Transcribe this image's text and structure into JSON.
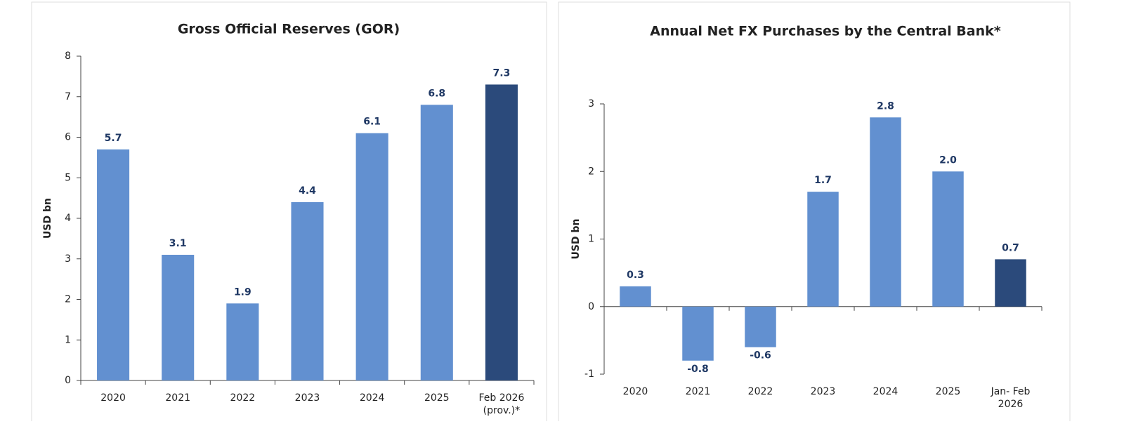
{
  "chart_data": [
    {
      "type": "bar",
      "title": "Gross Official Reserves (GOR)",
      "y_label": "USD bn",
      "categories": [
        "2020",
        "2021",
        "2022",
        "2023",
        "2024",
        "2025",
        [
          "Feb 2026",
          "(prov.)*"
        ]
      ],
      "values": [
        5.7,
        3.1,
        1.9,
        4.4,
        6.1,
        6.8,
        7.3
      ],
      "colors": [
        "#6290d0",
        "#6290d0",
        "#6290d0",
        "#6290d0",
        "#6290d0",
        "#6290d0",
        "#2b4a7b"
      ],
      "ylim": [
        0,
        8
      ],
      "yticks": [
        0,
        1,
        2,
        3,
        4,
        5,
        6,
        7,
        8
      ]
    },
    {
      "type": "bar",
      "title": "Annual Net FX Purchases by the Central Bank*",
      "y_label": "USD bn",
      "categories": [
        "2020",
        "2021",
        "2022",
        "2023",
        "2024",
        "2025",
        [
          "Jan- Feb",
          "2026"
        ]
      ],
      "values": [
        0.3,
        -0.8,
        -0.6,
        1.7,
        2.8,
        2.0,
        0.7
      ],
      "value_labels": [
        "0.3",
        "-0.8",
        "-0.6",
        "1.7",
        "2.8",
        "2.0",
        "0.7"
      ],
      "colors": [
        "#6290d0",
        "#6290d0",
        "#6290d0",
        "#6290d0",
        "#6290d0",
        "#6290d0",
        "#2b4a7b"
      ],
      "ylim": [
        -1,
        3
      ],
      "yticks": [
        -1,
        0,
        1,
        2,
        3
      ]
    }
  ]
}
